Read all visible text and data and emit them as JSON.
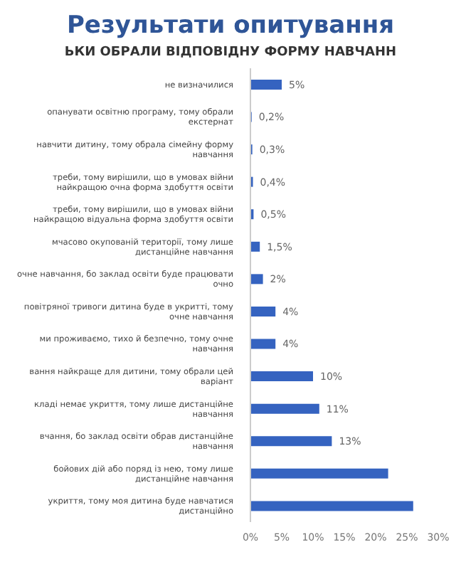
{
  "chart_data": {
    "type": "bar",
    "orientation": "horizontal",
    "title": "Результати опитування",
    "subtitle": "ЬКИ ОБРАЛИ ВІДПОВІДНУ ФОРМУ НАВЧАНН",
    "categories": [
      "не визначилися",
      "опанувати освітню програму, тому обрали екстернат",
      "навчити дитину, тому обрала сімейну форму навчання",
      "треби, тому вирішили, що в умовах війни найкращою очна форма здобуття освіти",
      "треби, тому вирішили, що в умовах війни найкращою відуальна форма здобуття освіти",
      "мчасово окупованій території, тому лише дистанційне навчання",
      "очне навчання, бо заклад освіти буде працювати очно",
      "повітряної тривоги дитина буде в укритті, тому очне навчання",
      "ми проживаємо, тихо й безпечно, тому очне навчання",
      "вання найкраще для дитини, тому обрали цей варіант",
      "кладі немає укриття, тому лише дистанційне навчання",
      "вчання, бо заклад освіти обрав дистанційне навчання",
      "бойових дій або поряд із нею, тому лише дистанційне навчання",
      "укриття, тому моя дитина буде навчатися дистанційно"
    ],
    "values": [
      5,
      0.2,
      0.3,
      0.4,
      0.5,
      1.5,
      2,
      4,
      4,
      10,
      11,
      13,
      22,
      26
    ],
    "value_labels": [
      "5%",
      "0,2%",
      "0,3%",
      "0,4%",
      "0,5%",
      "1,5%",
      "2%",
      "4%",
      "4%",
      "10%",
      "11%",
      "13%",
      null,
      null
    ],
    "color": "#3563c0",
    "xlim": [
      0,
      30
    ],
    "xticks": [
      {
        "value": 0,
        "label": "0%"
      },
      {
        "value": 5,
        "label": "5%"
      },
      {
        "value": 10,
        "label": "10%"
      },
      {
        "value": 15,
        "label": "15%"
      },
      {
        "value": 20,
        "label": "20%"
      },
      {
        "value": 25,
        "label": "25%"
      },
      {
        "value": 30,
        "label": "30%"
      }
    ],
    "grid": false,
    "legend": false
  }
}
